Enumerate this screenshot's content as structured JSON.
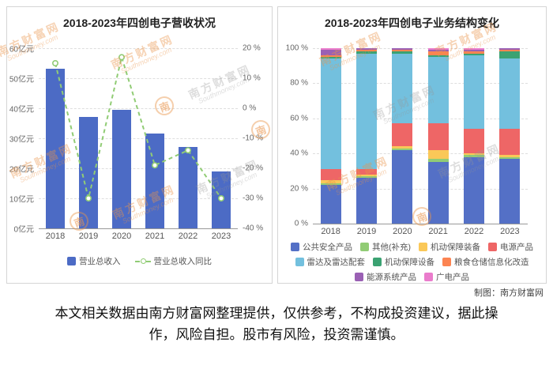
{
  "chart_data": [
    {
      "type": "bar",
      "subtype": "bar-with-yoy-line",
      "title": "2018-2023年四创电子营收状况",
      "categories": [
        "2018",
        "2019",
        "2020",
        "2021",
        "2022",
        "2023"
      ],
      "series": [
        {
          "name": "营业总收入",
          "type": "bar",
          "unit": "亿元",
          "color": "#4C6BC5",
          "values": [
            53.1,
            37.1,
            39.4,
            31.5,
            27.2,
            18.9
          ]
        },
        {
          "name": "营业总收入同比",
          "type": "line",
          "unit": "%",
          "color": "#91CC75",
          "line_style": "dashed",
          "values": [
            15,
            -30,
            17,
            -19,
            -14,
            -30
          ]
        }
      ],
      "y_left": {
        "labels_top_to_bottom": [
          "60亿元",
          "50亿元",
          "40亿元",
          "30亿元",
          "20亿元",
          "10亿元",
          "0亿元"
        ],
        "min": 0,
        "max": 60
      },
      "y_right": {
        "labels_top_to_bottom": [
          "20 %",
          "10 %",
          "0 %",
          "-10 %",
          "-20 %",
          "-30 %",
          "-40 %"
        ],
        "min": -40,
        "max": 20
      },
      "grid": "dashed-horizontal",
      "legend_position": "bottom"
    },
    {
      "type": "bar",
      "subtype": "stacked-100-percent",
      "title": "2018-2023年四创电子业务结构变化",
      "categories": [
        "2018",
        "2019",
        "2020",
        "2021",
        "2022",
        "2023"
      ],
      "y_axis": {
        "labels_top_to_bottom": [
          "100 %",
          "80 %",
          "60 %",
          "40 %",
          "20 %",
          "0 %"
        ],
        "min": 0,
        "max": 100
      },
      "series": [
        {
          "name": "公共安全产品",
          "color": "#5470C6",
          "values": [
            22,
            26,
            42,
            35,
            38,
            37
          ]
        },
        {
          "name": "其他(补充)",
          "color": "#91CC75",
          "values": [
            1,
            1,
            1,
            2,
            1,
            1
          ]
        },
        {
          "name": "机动保障装备",
          "color": "#FAC858",
          "values": [
            2,
            1,
            1,
            5,
            1,
            1
          ]
        },
        {
          "name": "电源产品",
          "color": "#EE6666",
          "values": [
            6,
            3,
            13,
            15,
            14,
            15
          ]
        },
        {
          "name": "雷达及雷达配套",
          "color": "#73C0DE",
          "values": [
            63,
            66,
            40,
            38,
            42,
            40
          ]
        },
        {
          "name": "机动保障设备",
          "color": "#3BA272",
          "values": [
            1,
            1,
            1,
            1,
            1,
            4
          ]
        },
        {
          "name": "粮食仓储信息化改造",
          "color": "#FC8452",
          "values": [
            1,
            1,
            1,
            2,
            1,
            1
          ]
        },
        {
          "name": "能源系统产品",
          "color": "#9A60B4",
          "values": [
            3,
            1,
            1,
            1,
            1,
            1
          ]
        },
        {
          "name": "广电产品",
          "color": "#EA7CCC",
          "values": [
            1,
            0,
            0,
            1,
            1,
            0
          ]
        }
      ],
      "grid": "dashed-horizontal",
      "legend_position": "bottom"
    }
  ],
  "credit": "制图：南方财富网",
  "disclaimer": [
    "本文相关数据由南方财富网整理提供，仅供参考，不构成投资建议，据此操",
    "作，风险自担。股市有风险，投资需谨慎。"
  ],
  "watermark": {
    "cn": "南方财富网",
    "en": "Southmoney.com",
    "logo": "南"
  }
}
